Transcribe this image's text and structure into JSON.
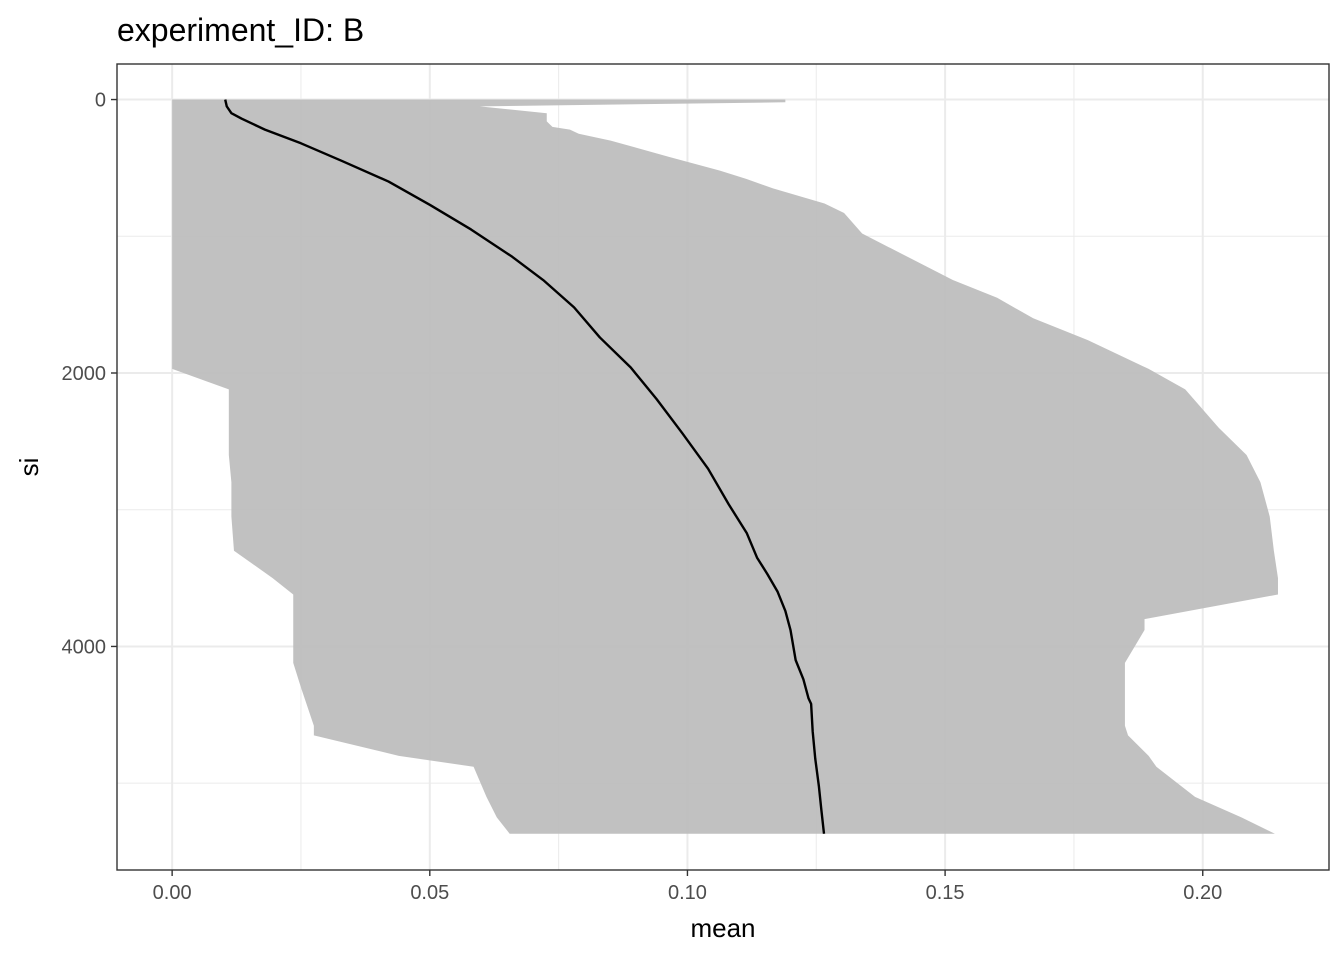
{
  "chart_data": {
    "type": "line",
    "title": "experiment_ID: B",
    "xlabel": "mean",
    "ylabel": "si",
    "xlim": [
      -0.0107,
      0.2245
    ],
    "ylim": [
      -260,
      5635
    ],
    "y_reversed": true,
    "x_ticks": [
      0.0,
      0.05,
      0.1,
      0.15,
      0.2
    ],
    "x_tick_labels": [
      "0.00",
      "0.05",
      "0.10",
      "0.15",
      "0.20"
    ],
    "x_minor_ticks": [
      0.025,
      0.075,
      0.125,
      0.175
    ],
    "y_ticks": [
      0,
      2000,
      4000
    ],
    "y_tick_labels": [
      "0",
      "2000",
      "4000"
    ],
    "y_minor_ticks": [
      1000,
      3000,
      5000
    ],
    "grid": true,
    "colors": {
      "ribbon": "#bebebe",
      "line": "#000000",
      "grid": "#ebebeb",
      "border": "#333333"
    },
    "series": [
      {
        "type": "line",
        "x": [
          0.0103,
          0.0106,
          0.0115,
          0.0135,
          0.018,
          0.025,
          0.033,
          0.042,
          0.05,
          0.058,
          0.066,
          0.072,
          0.078,
          0.083,
          0.089,
          0.094,
          0.099,
          0.104,
          0.108,
          0.1115,
          0.1135,
          0.1155,
          0.1175,
          0.119,
          0.12,
          0.121,
          0.1225,
          0.1235,
          0.124,
          0.1243,
          0.1248,
          0.1255,
          0.126,
          0.1265
        ],
        "y": [
          0,
          50,
          100,
          140,
          220,
          320,
          450,
          600,
          770,
          950,
          1150,
          1320,
          1520,
          1740,
          1960,
          2190,
          2440,
          2700,
          2960,
          3170,
          3350,
          3470,
          3600,
          3740,
          3880,
          4100,
          4240,
          4380,
          4420,
          4620,
          4820,
          5020,
          5200,
          5370
        ]
      },
      {
        "type": "ribbon",
        "y": [
          0,
          20,
          50,
          100,
          160,
          200,
          220,
          250,
          300,
          420,
          520,
          580,
          650,
          760,
          830,
          980,
          1150,
          1320,
          1450,
          1600,
          1760,
          1970,
          2120,
          2400,
          2600,
          2800,
          3050,
          3300,
          3500,
          3620,
          3800,
          3880,
          4120,
          4300,
          4580,
          4650,
          4800,
          4880,
          5100,
          5250,
          5370
        ],
        "xmin": [
          0.0,
          0.0,
          0.0,
          0.0,
          0.0,
          0.0,
          0.0,
          0.0,
          0.0,
          0.0,
          0.0,
          0.0,
          0.0,
          0.0,
          0.0,
          0.0,
          0.0,
          0.0,
          0.0,
          0.0,
          0.0,
          0.0,
          0.011,
          0.011,
          0.011,
          0.0115,
          0.0115,
          0.012,
          0.0195,
          0.0235,
          0.0235,
          0.0235,
          0.0235,
          0.025,
          0.0275,
          0.0275,
          0.044,
          0.0585,
          0.061,
          0.063,
          0.0655
        ],
        "xmax": [
          0.119,
          0.119,
          0.0597,
          0.0727,
          0.0727,
          0.0738,
          0.0772,
          0.0789,
          0.0851,
          0.0965,
          0.1063,
          0.1114,
          0.1166,
          0.1266,
          0.1304,
          0.1339,
          0.1427,
          0.1515,
          0.1601,
          0.1671,
          0.1777,
          0.1895,
          0.1966,
          0.2031,
          0.2085,
          0.2112,
          0.213,
          0.2138,
          0.2146,
          0.2146,
          0.1887,
          0.1887,
          0.1849,
          0.1849,
          0.1849,
          0.1855,
          0.1895,
          0.191,
          0.1985,
          0.2075,
          0.214
        ]
      }
    ]
  }
}
